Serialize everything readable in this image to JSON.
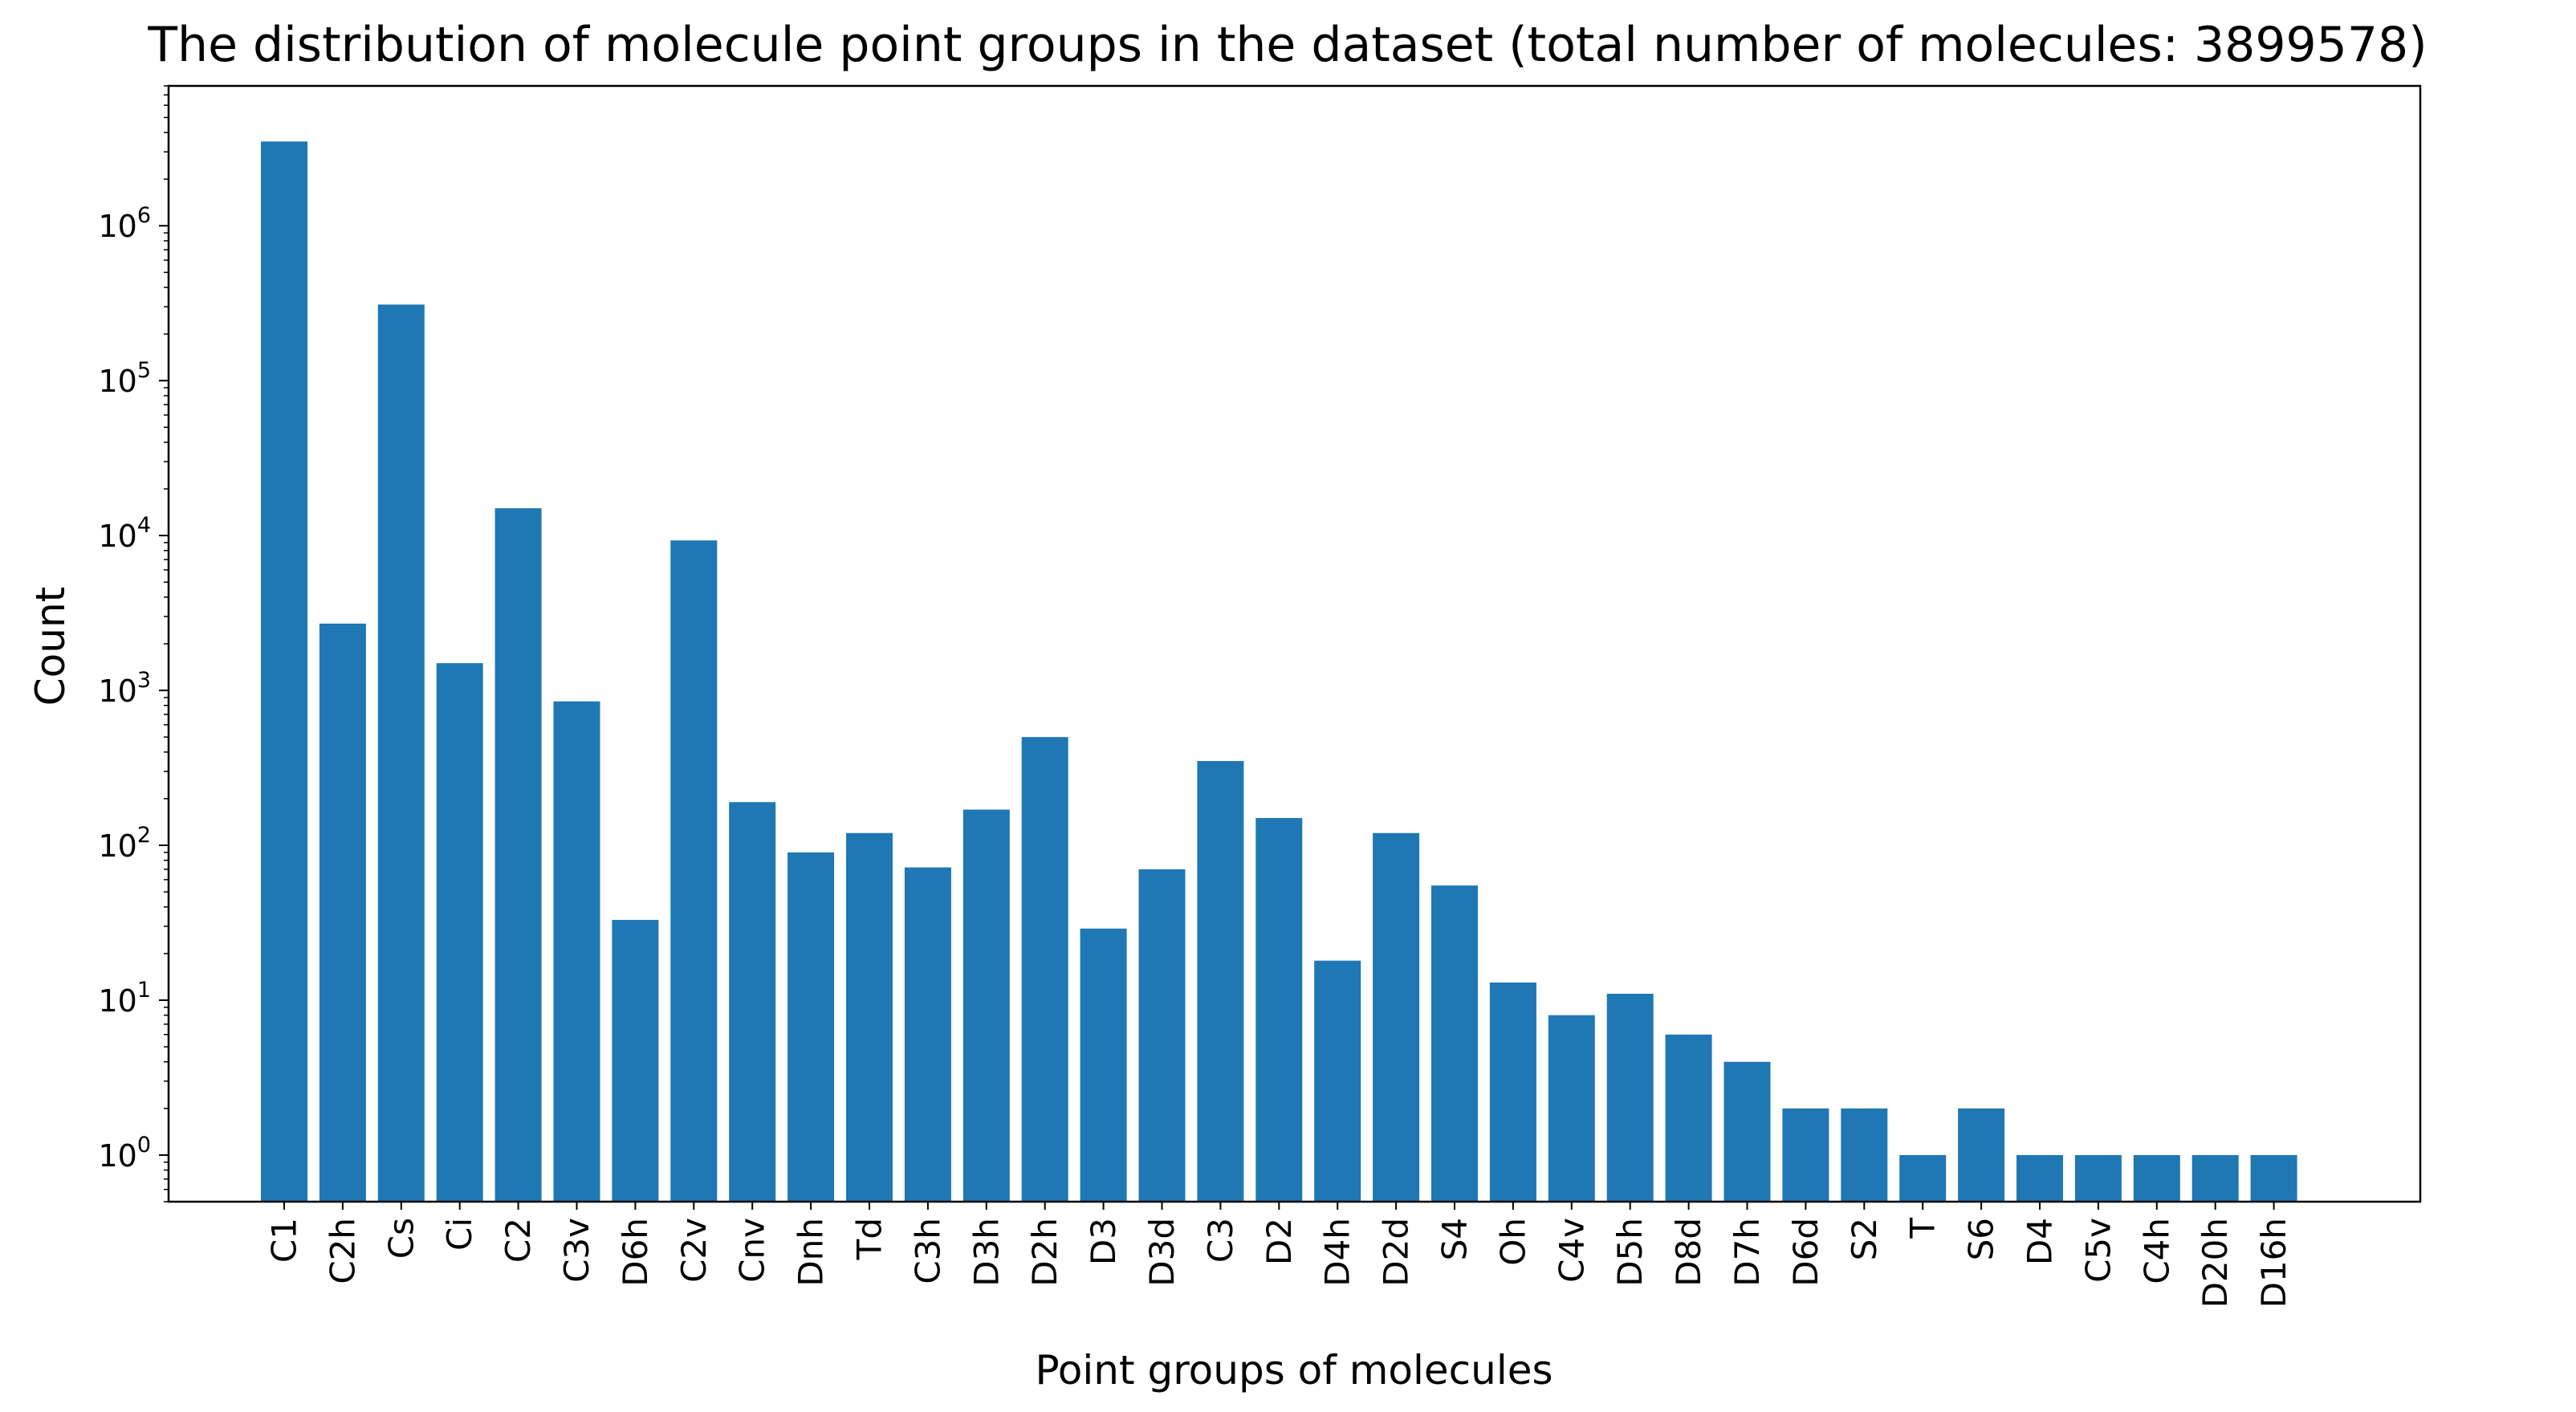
{
  "chart_data": {
    "type": "bar",
    "title": "The distribution of molecule point groups in the dataset (total number of molecules: 3899578)",
    "xlabel": "Point groups of molecules",
    "ylabel": "Count",
    "yscale": "log",
    "ylim": [
      0.5,
      8000000
    ],
    "yticks": [
      {
        "base": "10",
        "exp": "0",
        "value": 1
      },
      {
        "base": "10",
        "exp": "1",
        "value": 10
      },
      {
        "base": "10",
        "exp": "2",
        "value": 100
      },
      {
        "base": "10",
        "exp": "3",
        "value": 1000
      },
      {
        "base": "10",
        "exp": "4",
        "value": 10000
      },
      {
        "base": "10",
        "exp": "5",
        "value": 100000
      },
      {
        "base": "10",
        "exp": "6",
        "value": 1000000
      }
    ],
    "grid": false,
    "bar_color": "#1f77b4",
    "categories": [
      "C1",
      "C2h",
      "Cs",
      "Ci",
      "C2",
      "C3v",
      "D6h",
      "C2v",
      "Cnv",
      "Dnh",
      "Td",
      "C3h",
      "D3h",
      "D2h",
      "D3",
      "D3d",
      "C3",
      "D2",
      "D4h",
      "D2d",
      "S4",
      "Oh",
      "C4v",
      "D5h",
      "D8d",
      "D7h",
      "D6d",
      "S2",
      "T",
      "S6",
      "D4",
      "C5v",
      "C4h",
      "D20h",
      "D16h"
    ],
    "values": [
      3500000,
      2700,
      310000,
      1500,
      15000,
      850,
      33,
      9300,
      190,
      90,
      120,
      72,
      170,
      500,
      29,
      70,
      350,
      150,
      18,
      120,
      55,
      13,
      8,
      11,
      6,
      4,
      2,
      2,
      1,
      2,
      1,
      1,
      1,
      1,
      1
    ]
  }
}
